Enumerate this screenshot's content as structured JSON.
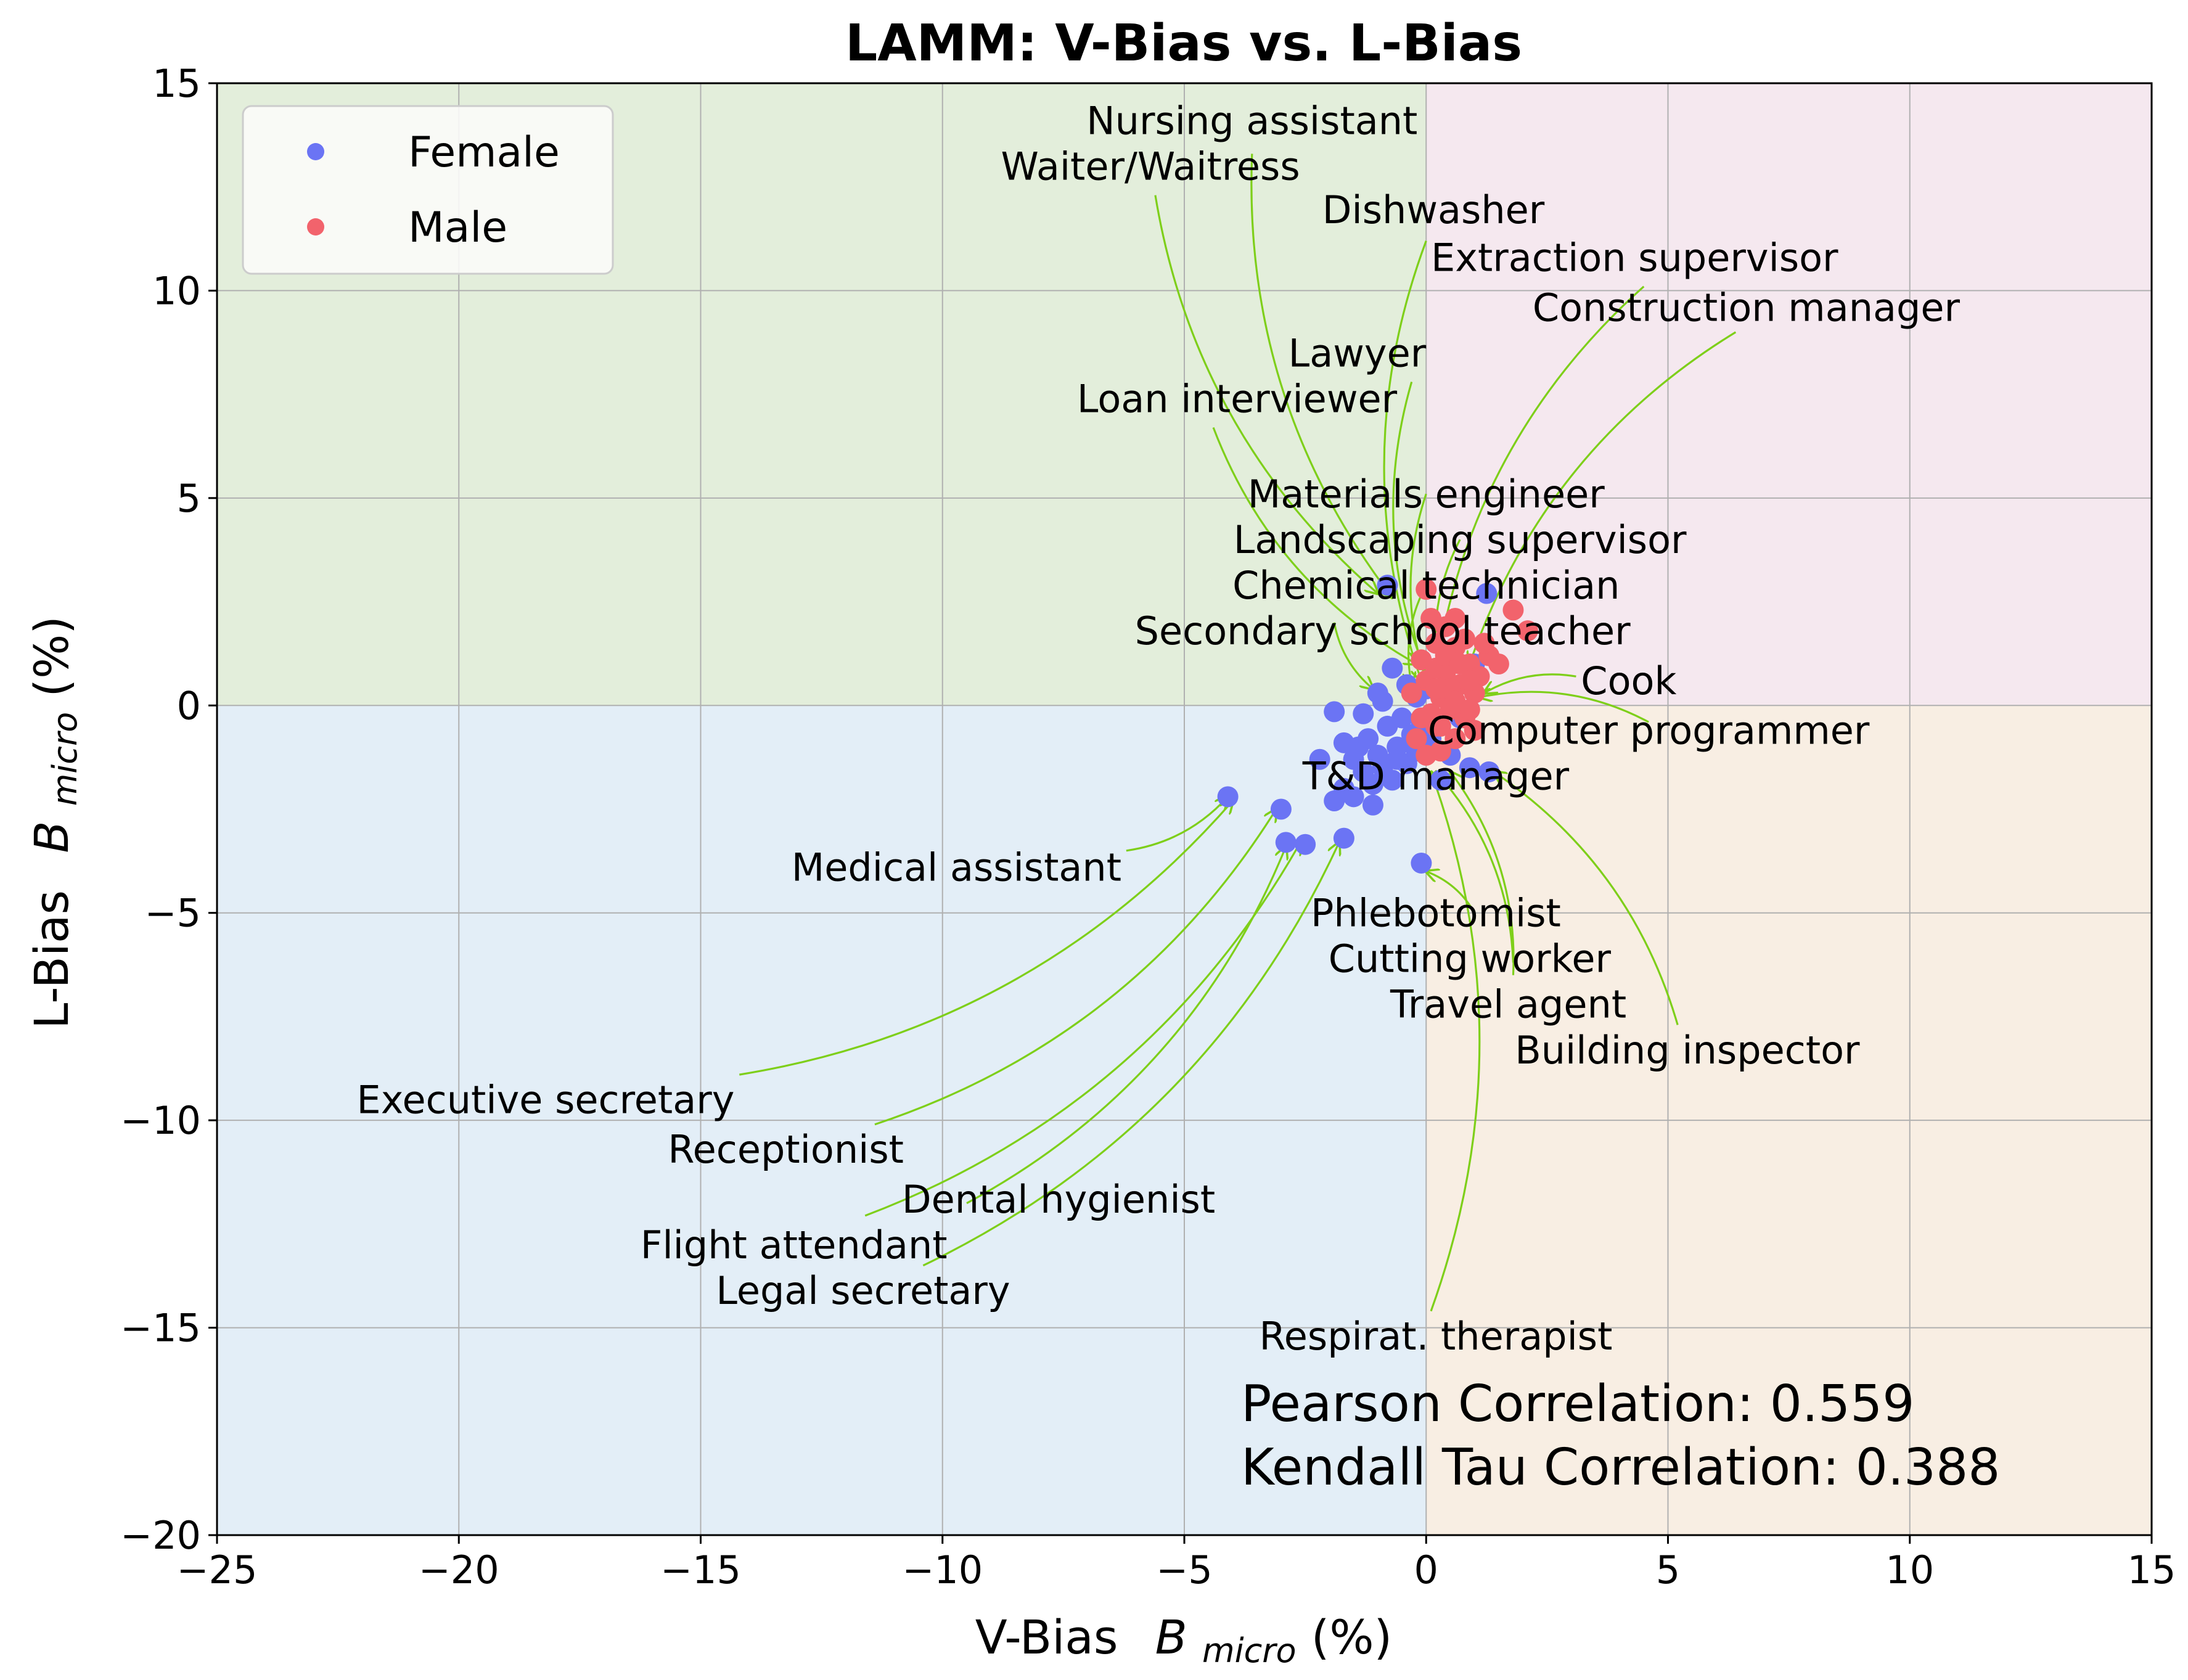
{
  "chart_data": {
    "type": "scatter",
    "title": "LAMM: V-Bias vs. L-Bias",
    "xlabel": "V-Bias",
    "xlabel_symbol": "B",
    "xlabel_sub": "micro",
    "xlabel_unit": "(%)",
    "ylabel": "L-Bias",
    "ylabel_symbol": "B",
    "ylabel_sub": "micro",
    "ylabel_unit": "(%)",
    "xlim": [
      -25,
      15
    ],
    "ylim": [
      -20,
      15
    ],
    "xticks": [
      -25,
      -20,
      -15,
      -10,
      -5,
      0,
      5,
      10,
      15
    ],
    "yticks": [
      -20,
      -15,
      -10,
      -5,
      0,
      5,
      10,
      15
    ],
    "grid": true,
    "legend": {
      "placement": "top-left"
    },
    "quadrant_colors": {
      "top_left": "#e3eedb",
      "top_right": "#f5e8ef",
      "bottom_left": "#e3eef7",
      "bottom_right": "#f8eee3"
    },
    "series": [
      {
        "name": "Female",
        "color": "#6b74f4",
        "points": [
          [
            -4.1,
            -2.2
          ],
          [
            -3.0,
            -2.5
          ],
          [
            -2.9,
            -3.3
          ],
          [
            -2.5,
            -3.35
          ],
          [
            -1.7,
            -3.2
          ],
          [
            -0.1,
            -3.8
          ],
          [
            -2.2,
            -1.3
          ],
          [
            -1.9,
            -2.3
          ],
          [
            -1.7,
            -2.0
          ],
          [
            -1.5,
            -1.3
          ],
          [
            -1.4,
            -1.0
          ],
          [
            -1.3,
            -1.6
          ],
          [
            -1.2,
            -0.8
          ],
          [
            -1.1,
            -1.9
          ],
          [
            -1.0,
            -1.2
          ],
          [
            -0.9,
            -1.5
          ],
          [
            -0.8,
            -0.5
          ],
          [
            -0.7,
            -1.8
          ],
          [
            -0.6,
            -1.0
          ],
          [
            -0.5,
            -0.3
          ],
          [
            -0.4,
            -1.4
          ],
          [
            -0.3,
            -0.7
          ],
          [
            -0.2,
            -1.1
          ],
          [
            -0.1,
            -0.4
          ],
          [
            -1.9,
            -0.15
          ],
          [
            -1.0,
            0.3
          ],
          [
            -0.7,
            0.9
          ],
          [
            -0.4,
            0.5
          ],
          [
            -0.2,
            0.2
          ],
          [
            -0.8,
            2.9
          ],
          [
            1.25,
            2.7
          ],
          [
            1.0,
            1.0
          ],
          [
            0.7,
            -0.3
          ],
          [
            0.9,
            -1.5
          ],
          [
            1.3,
            -1.6
          ],
          [
            0.5,
            -1.2
          ],
          [
            -1.3,
            -0.2
          ],
          [
            -1.1,
            -2.4
          ],
          [
            -1.5,
            -2.2
          ],
          [
            -0.6,
            -1.3
          ],
          [
            -0.3,
            -0.9
          ],
          [
            0.1,
            -0.8
          ],
          [
            0.3,
            -1.8
          ],
          [
            -1.7,
            -0.9
          ],
          [
            -0.9,
            0.1
          ],
          [
            0.0,
            0.4
          ]
        ]
      },
      {
        "name": "Male",
        "color": "#f2636c",
        "points": [
          [
            0.0,
            2.8
          ],
          [
            1.8,
            2.3
          ],
          [
            2.1,
            1.8
          ],
          [
            0.6,
            1.4
          ],
          [
            0.9,
            1.0
          ],
          [
            1.3,
            1.2
          ],
          [
            0.2,
            1.5
          ],
          [
            0.4,
            0.8
          ],
          [
            0.7,
            0.5
          ],
          [
            1.0,
            0.3
          ],
          [
            0.3,
            0.2
          ],
          [
            0.5,
            -0.1
          ],
          [
            0.8,
            -0.3
          ],
          [
            1.0,
            -0.6
          ],
          [
            0.2,
            -0.5
          ],
          [
            0.0,
            0.6
          ],
          [
            -0.1,
            1.1
          ],
          [
            0.4,
            1.9
          ],
          [
            0.6,
            2.1
          ],
          [
            1.5,
            1.0
          ],
          [
            0.1,
            -0.2
          ],
          [
            -0.2,
            -0.8
          ],
          [
            0.3,
            -1.1
          ],
          [
            0.6,
            -0.8
          ],
          [
            0.8,
            1.6
          ],
          [
            1.1,
            0.7
          ],
          [
            0.2,
            0.9
          ],
          [
            0.5,
            0.4
          ],
          [
            0.9,
            -0.1
          ],
          [
            0.0,
            -1.2
          ],
          [
            0.4,
            1.2
          ],
          [
            0.7,
            1.0
          ],
          [
            1.2,
            1.5
          ],
          [
            -0.3,
            0.3
          ],
          [
            0.1,
            2.1
          ],
          [
            0.9,
            0.6
          ],
          [
            0.3,
            -0.5
          ],
          [
            0.6,
            0.1
          ],
          [
            -0.1,
            -0.3
          ],
          [
            0.2,
            0.4
          ]
        ]
      }
    ],
    "annotations": [
      {
        "label": "Nursing assistant",
        "xy": [
          -0.7,
          2.6
        ],
        "text_xy": [
          -3.6,
          14.1
        ],
        "ha": "center",
        "arrow_start": [
          -3.6,
          13.3
        ]
      },
      {
        "label": "Waiter/Waitress",
        "xy": [
          -1.0,
          2.7
        ],
        "text_xy": [
          -5.7,
          13.0
        ],
        "ha": "center",
        "arrow_start": [
          -5.6,
          12.3
        ]
      },
      {
        "label": "Dishwasher",
        "xy": [
          -0.1,
          0.6
        ],
        "text_xy": [
          0.15,
          11.95
        ],
        "ha": "center",
        "arrow_start": [
          0.0,
          11.2
        ]
      },
      {
        "label": "Extraction supervisor",
        "xy": [
          0.2,
          0.8
        ],
        "text_xy": [
          0.1,
          10.8
        ],
        "ha": "left",
        "arrow_start": [
          4.5,
          10.1
        ]
      },
      {
        "label": "Construction manager",
        "xy": [
          0.9,
          1.0
        ],
        "text_xy": [
          2.2,
          9.6
        ],
        "ha": "left",
        "arrow_start": [
          6.4,
          9.0
        ]
      },
      {
        "label": "Lawyer",
        "xy": [
          0.1,
          0.5
        ],
        "text_xy": [
          0.0,
          8.5
        ],
        "ha": "right",
        "arrow_start": [
          -0.3,
          7.8
        ]
      },
      {
        "label": "Loan interviewer",
        "xy": [
          -0.2,
          1.0
        ],
        "text_xy": [
          -0.6,
          7.4
        ],
        "ha": "right",
        "arrow_start": [
          -4.4,
          6.7
        ]
      },
      {
        "label": "Materials engineer",
        "xy": [
          0.1,
          0.3
        ],
        "text_xy": [
          0.0,
          5.1
        ],
        "ha": "center",
        "arrow_start": [
          0.0,
          5.1
        ]
      },
      {
        "label": "Landscaping supervisor",
        "xy": [
          0.3,
          0.5
        ],
        "text_xy": [
          0.7,
          4.0
        ],
        "ha": "center",
        "arrow_start": [
          0.7,
          4.0
        ]
      },
      {
        "label": "Chemical technician",
        "xy": [
          -0.3,
          0.5
        ],
        "text_xy": [
          0.0,
          2.9
        ],
        "ha": "center",
        "arrow_start": [
          0.0,
          2.9
        ]
      },
      {
        "label": "Secondary school teacher",
        "xy": [
          -1.1,
          0.4
        ],
        "text_xy": [
          -0.9,
          1.8
        ],
        "ha": "center",
        "arrow_start": [
          -1.9,
          2.0
        ]
      },
      {
        "label": "Cook",
        "xy": [
          1.2,
          0.3
        ],
        "text_xy": [
          3.2,
          0.6
        ],
        "ha": "left",
        "arrow_start": [
          3.1,
          0.7
        ]
      },
      {
        "label": "Computer programmer",
        "xy": [
          1.1,
          0.2
        ],
        "text_xy": [
          4.6,
          -0.6
        ],
        "ha": "center",
        "arrow_start": [
          4.6,
          -0.4
        ]
      },
      {
        "label": "T&D manager",
        "xy": [
          0.2,
          -1.3
        ],
        "text_xy": [
          0.2,
          -1.7
        ],
        "ha": "center",
        "arrow_start": [
          0.2,
          -1.7
        ]
      },
      {
        "label": "Medical assistant",
        "xy": [
          -4.1,
          -2.2
        ],
        "text_xy": [
          -6.3,
          -3.9
        ],
        "ha": "right",
        "arrow_start": [
          -6.2,
          -3.5
        ]
      },
      {
        "label": "Phlebotomist",
        "xy": [
          0.0,
          -4.0
        ],
        "text_xy": [
          0.2,
          -5.0
        ],
        "ha": "center",
        "arrow_start": [
          1.0,
          -5.0
        ]
      },
      {
        "label": "Cutting worker",
        "xy": [
          0.2,
          -1.6
        ],
        "text_xy": [
          0.9,
          -6.1
        ],
        "ha": "center",
        "arrow_start": [
          1.8,
          -6.2
        ]
      },
      {
        "label": "Travel agent",
        "xy": [
          0.5,
          -1.6
        ],
        "text_xy": [
          1.7,
          -7.2
        ],
        "ha": "center",
        "arrow_start": [
          1.8,
          -6.5
        ]
      },
      {
        "label": "Building inspector",
        "xy": [
          1.4,
          -1.6
        ],
        "text_xy": [
          5.4,
          -8.3
        ],
        "ha": "center",
        "arrow_start": [
          5.2,
          -7.7
        ]
      },
      {
        "label": "Executive secretary",
        "xy": [
          -4.0,
          -2.3
        ],
        "text_xy": [
          -14.3,
          -9.5
        ],
        "ha": "right",
        "arrow_start": [
          -14.2,
          -8.9
        ]
      },
      {
        "label": "Receptionist",
        "xy": [
          -3.1,
          -2.5
        ],
        "text_xy": [
          -10.8,
          -10.7
        ],
        "ha": "right",
        "arrow_start": [
          -11.4,
          -10.1
        ]
      },
      {
        "label": "Dental hygienist",
        "xy": [
          -2.6,
          -3.3
        ],
        "text_xy": [
          -7.6,
          -11.9
        ],
        "ha": "center",
        "arrow_start": [
          -11.6,
          -12.3
        ]
      },
      {
        "label": "Flight attendant",
        "xy": [
          -2.9,
          -3.4
        ],
        "text_xy": [
          -9.9,
          -13.0
        ],
        "ha": "right",
        "arrow_start": [
          -9.5,
          -12.0
        ]
      },
      {
        "label": "Legal secretary",
        "xy": [
          -1.8,
          -3.3
        ],
        "text_xy": [
          -8.6,
          -14.1
        ],
        "ha": "right",
        "arrow_start": [
          -10.4,
          -13.5
        ]
      },
      {
        "label": "Respirat. therapist",
        "xy": [
          0.1,
          -1.6
        ],
        "text_xy": [
          0.2,
          -15.2
        ],
        "ha": "center",
        "arrow_start": [
          0.1,
          -14.6
        ]
      }
    ],
    "arrow_color": "#7ecf1a",
    "pearson_text": "Pearson Correlation: 0.559",
    "kendall_text": "Kendall Tau Correlation: 0.388"
  }
}
